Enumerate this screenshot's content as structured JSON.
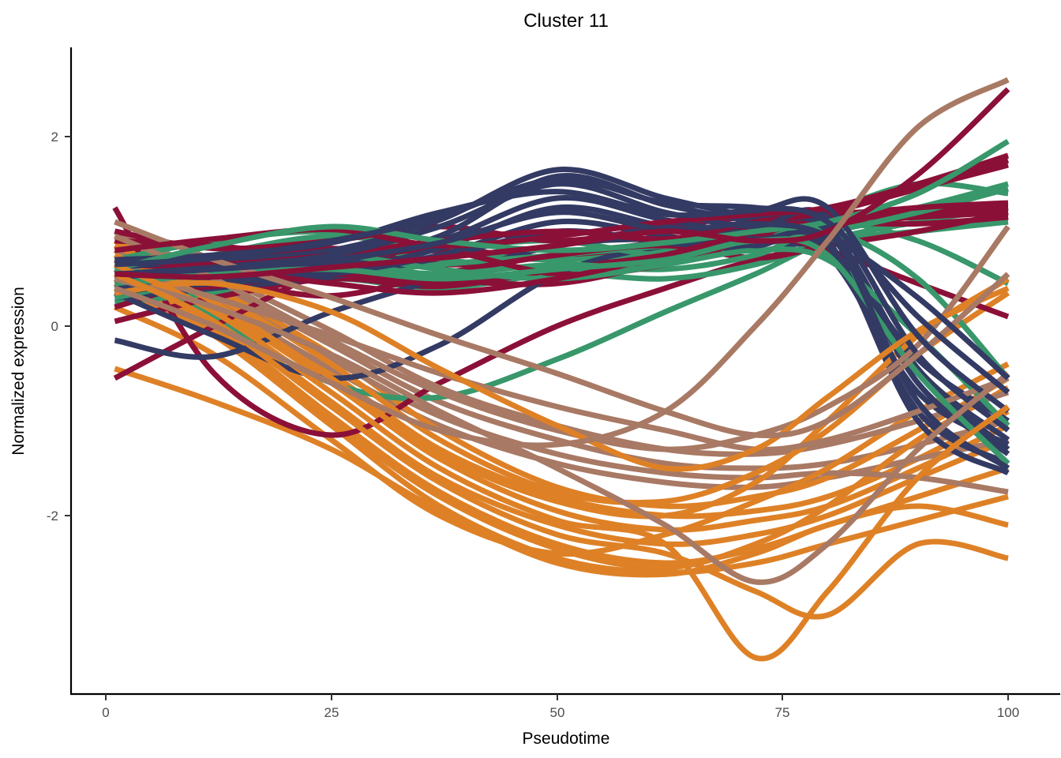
{
  "title": "Cluster 11",
  "chart_data": {
    "type": "line",
    "title": "Cluster 11",
    "xlabel": "Pseudotime",
    "ylabel": "Normalized expression",
    "x_ticks": [
      0,
      25,
      50,
      75,
      100
    ],
    "y_ticks": [
      -2,
      0,
      2
    ],
    "xlim": [
      0,
      100
    ],
    "ylim": [
      -3.8,
      2.9
    ],
    "grid": "off",
    "legend": "none",
    "description": "Smoothed normalized gene expression trajectories over pseudotime for genes in cluster 11, colored by lineage group",
    "palette": {
      "navy": "#333A63",
      "maroon": "#8B1038",
      "green": "#38976B",
      "orange": "#DE8126",
      "tan": "#A87964"
    },
    "t_grid": [
      1,
      12,
      25,
      37,
      50,
      62,
      72,
      80,
      90,
      100
    ],
    "series": [
      {
        "color": "orange",
        "values": [
          0.8,
          0.3,
          -0.5,
          -1.3,
          -1.8,
          -2.0,
          -1.95,
          -1.8,
          -1.4,
          -0.9
        ]
      },
      {
        "color": "orange",
        "values": [
          0.7,
          0.2,
          -0.6,
          -1.4,
          -1.95,
          -2.15,
          -2.05,
          -1.9,
          -1.5,
          -1.05
        ]
      },
      {
        "color": "orange",
        "values": [
          0.6,
          0.1,
          -0.8,
          -1.6,
          -2.1,
          -2.3,
          -2.2,
          -2.0,
          -1.6,
          -1.2
        ]
      },
      {
        "color": "orange",
        "values": [
          0.5,
          0.0,
          -0.95,
          -1.75,
          -2.3,
          -2.5,
          -2.35,
          -2.1,
          -1.8,
          -1.5
        ]
      },
      {
        "color": "orange",
        "values": [
          0.4,
          -0.1,
          -1.05,
          -1.9,
          -2.45,
          -2.6,
          -2.5,
          -2.3,
          -2.05,
          -1.8
        ]
      },
      {
        "color": "tan",
        "values": [
          0.9,
          0.45,
          -0.2,
          -0.8,
          -1.2,
          -1.45,
          -1.5,
          -1.45,
          -1.25,
          -1.0
        ]
      },
      {
        "color": "tan",
        "values": [
          0.7,
          0.25,
          -0.45,
          -1.05,
          -1.45,
          -1.65,
          -1.7,
          -1.6,
          -1.4,
          -1.2
        ]
      },
      {
        "color": "orange",
        "values": [
          0.9,
          0.4,
          -0.3,
          -1.1,
          -1.7,
          -1.9,
          -1.8,
          -1.6,
          -1.1,
          -0.55
        ]
      },
      {
        "color": "orange",
        "values": [
          0.45,
          -0.05,
          -1.0,
          -1.8,
          -2.35,
          -2.55,
          -2.3,
          -1.9,
          -1.2,
          -0.65
        ]
      },
      {
        "color": "orange",
        "values": [
          -0.45,
          -0.8,
          -1.3,
          -1.95,
          -2.5,
          -2.62,
          -2.4,
          -2.1,
          -1.9,
          -2.1
        ]
      },
      {
        "color": "tan",
        "values": [
          0.8,
          0.35,
          -0.35,
          -0.95,
          -1.35,
          -1.55,
          -1.6,
          -1.55,
          -1.6,
          -1.75
        ]
      },
      {
        "color": "orange",
        "values": [
          0.2,
          -0.3,
          -1.2,
          -2.0,
          -2.4,
          -2.2,
          -1.85,
          -1.5,
          -0.9,
          -0.4
        ]
      },
      {
        "color": "green",
        "values": [
          0.6,
          0.1,
          -0.6,
          -0.75,
          -0.35,
          0.15,
          0.55,
          0.9,
          1.1,
          1.25
        ]
      },
      {
        "color": "maroon",
        "values": [
          1.25,
          -0.5,
          -1.15,
          -0.6,
          0.0,
          0.4,
          0.7,
          0.85,
          1.0,
          1.15
        ]
      },
      {
        "color": "tan",
        "values": [
          1.0,
          0.55,
          -0.05,
          -0.65,
          -1.05,
          -1.3,
          -1.35,
          -1.25,
          -1.0,
          -0.7
        ]
      },
      {
        "color": "orange",
        "values": [
          0.85,
          0.35,
          -0.4,
          -1.2,
          -1.75,
          -1.85,
          -1.55,
          -1.1,
          -0.3,
          0.35
        ]
      },
      {
        "color": "maroon",
        "values": [
          -0.55,
          0.0,
          0.6,
          0.8,
          0.72,
          0.85,
          1.05,
          1.15,
          1.2,
          1.25
        ]
      },
      {
        "color": "green",
        "values": [
          0.25,
          0.35,
          0.5,
          0.4,
          0.55,
          0.5,
          0.65,
          0.9,
          1.0,
          1.1
        ]
      },
      {
        "color": "green",
        "values": [
          0.4,
          0.6,
          0.8,
          0.7,
          0.6,
          0.7,
          0.85,
          1.1,
          0.9,
          0.45
        ]
      },
      {
        "color": "maroon",
        "values": [
          0.05,
          0.3,
          0.5,
          0.42,
          0.6,
          0.8,
          1.0,
          1.08,
          1.15,
          1.2
        ]
      },
      {
        "color": "green",
        "values": [
          0.5,
          0.75,
          0.95,
          0.8,
          0.7,
          0.8,
          0.95,
          1.05,
          1.25,
          1.5
        ]
      },
      {
        "color": "maroon",
        "values": [
          0.2,
          0.5,
          0.65,
          0.5,
          0.45,
          0.7,
          1.05,
          1.12,
          1.18,
          1.25
        ]
      },
      {
        "color": "navy",
        "values": [
          0.35,
          -0.1,
          -0.55,
          -0.2,
          0.55,
          0.85,
          0.9,
          0.85,
          -0.35,
          -1.0
        ]
      },
      {
        "color": "green",
        "values": [
          0.7,
          0.9,
          1.0,
          0.85,
          0.9,
          0.75,
          0.9,
          1.2,
          1.5,
          1.4
        ]
      },
      {
        "color": "maroon",
        "values": [
          0.45,
          0.7,
          0.82,
          0.65,
          0.75,
          0.9,
          1.1,
          1.18,
          1.22,
          1.18
        ]
      },
      {
        "color": "navy",
        "values": [
          -0.15,
          -0.32,
          0.15,
          0.5,
          0.85,
          0.92,
          0.88,
          0.8,
          -0.5,
          -1.3
        ]
      },
      {
        "color": "maroon",
        "values": [
          1.0,
          0.82,
          0.9,
          1.05,
          0.9,
          1.05,
          1.15,
          1.1,
          1.08,
          1.15
        ]
      },
      {
        "color": "green",
        "values": [
          0.35,
          0.45,
          0.55,
          0.65,
          0.75,
          0.85,
          0.95,
          1.0,
          1.2,
          1.45
        ]
      },
      {
        "color": "maroon",
        "values": [
          0.3,
          0.45,
          0.32,
          0.55,
          0.75,
          0.85,
          0.72,
          0.85,
          1.0,
          1.2
        ]
      },
      {
        "color": "navy",
        "values": [
          0.3,
          0.4,
          0.52,
          0.72,
          1.0,
          0.88,
          0.8,
          0.75,
          -0.7,
          -1.25
        ]
      },
      {
        "color": "maroon",
        "values": [
          0.35,
          0.42,
          0.55,
          0.45,
          0.6,
          0.75,
          0.95,
          0.8,
          0.45,
          0.1
        ]
      },
      {
        "color": "green",
        "values": [
          0.3,
          0.5,
          0.65,
          0.55,
          0.65,
          0.6,
          0.75,
          1.0,
          0.5,
          -0.55
        ]
      },
      {
        "color": "navy",
        "values": [
          0.5,
          0.55,
          0.65,
          0.9,
          1.35,
          1.12,
          0.98,
          1.05,
          -0.45,
          -1.2
        ]
      },
      {
        "color": "maroon",
        "values": [
          0.9,
          0.85,
          0.72,
          0.8,
          0.55,
          0.65,
          0.95,
          1.15,
          1.25,
          1.3
        ]
      },
      {
        "color": "navy",
        "values": [
          0.35,
          0.48,
          0.58,
          0.82,
          1.25,
          1.05,
          0.92,
          0.85,
          -0.9,
          -1.45
        ]
      },
      {
        "color": "green",
        "values": [
          0.55,
          0.65,
          0.75,
          0.6,
          0.5,
          0.65,
          0.8,
          0.7,
          -0.1,
          -1.05
        ]
      },
      {
        "color": "navy",
        "values": [
          0.4,
          0.45,
          0.55,
          0.75,
          1.1,
          0.95,
          0.85,
          0.9,
          -1.0,
          -1.55
        ]
      },
      {
        "color": "orange",
        "values": [
          0.75,
          0.25,
          -0.55,
          -1.35,
          -1.85,
          -2.0,
          -1.65,
          -1.0,
          -0.1,
          0.5
        ]
      },
      {
        "color": "tan",
        "values": [
          0.6,
          0.3,
          -0.1,
          -0.5,
          -0.85,
          -1.1,
          -1.3,
          -1.2,
          -0.9,
          -0.55
        ]
      },
      {
        "color": "maroon",
        "values": [
          0.65,
          0.6,
          0.45,
          0.35,
          0.5,
          0.75,
          1.0,
          1.2,
          1.45,
          1.75
        ]
      },
      {
        "color": "navy",
        "values": [
          0.45,
          0.58,
          0.68,
          0.95,
          1.58,
          1.28,
          1.1,
          1.0,
          -0.6,
          -1.35
        ]
      },
      {
        "color": "green",
        "values": [
          0.45,
          0.55,
          0.6,
          0.5,
          0.6,
          0.7,
          0.9,
          0.75,
          -0.5,
          -1.45
        ]
      },
      {
        "color": "navy",
        "values": [
          0.62,
          0.7,
          0.8,
          1.12,
          1.65,
          1.35,
          1.15,
          1.05,
          -0.8,
          -1.5
        ]
      },
      {
        "color": "tan",
        "values": [
          0.95,
          0.5,
          -0.15,
          -0.7,
          -1.1,
          -1.3,
          -1.15,
          -0.85,
          -0.2,
          1.05
        ]
      },
      {
        "color": "maroon",
        "values": [
          0.7,
          0.65,
          0.75,
          0.9,
          1.0,
          0.92,
          1.1,
          1.2,
          1.45,
          1.7
        ]
      },
      {
        "color": "navy",
        "values": [
          0.55,
          0.62,
          0.75,
          1.05,
          1.5,
          1.2,
          1.05,
          1.15,
          -0.3,
          -1.1
        ]
      },
      {
        "color": "orange",
        "values": [
          0.35,
          0.45,
          0.15,
          -0.45,
          -1.05,
          -1.5,
          -1.3,
          -0.75,
          -0.05,
          0.4
        ]
      },
      {
        "color": "tan",
        "values": [
          1.1,
          0.7,
          0.3,
          -0.1,
          -0.5,
          -0.9,
          -1.15,
          -1.0,
          -0.3,
          0.55
        ]
      },
      {
        "color": "maroon",
        "values": [
          0.8,
          0.92,
          1.02,
          0.85,
          0.95,
          1.1,
          1.18,
          1.25,
          1.5,
          1.8
        ]
      },
      {
        "color": "navy",
        "values": [
          0.7,
          0.75,
          0.88,
          1.2,
          1.42,
          1.18,
          1.22,
          1.25,
          -0.1,
          -0.9
        ]
      },
      {
        "color": "green",
        "values": [
          0.6,
          0.85,
          1.05,
          0.9,
          0.8,
          0.88,
          1.0,
          1.1,
          1.4,
          1.95
        ]
      },
      {
        "color": "orange",
        "values": [
          0.65,
          0.15,
          -0.7,
          -1.5,
          -2.05,
          -2.3,
          -3.5,
          -2.8,
          -1.6,
          -0.85
        ]
      },
      {
        "color": "tan",
        "values": [
          0.5,
          0.2,
          -0.3,
          -0.9,
          -1.5,
          -2.1,
          -2.7,
          -2.3,
          -1.3,
          -0.5
        ]
      },
      {
        "color": "orange",
        "values": [
          0.55,
          0.05,
          -0.85,
          -1.65,
          -2.2,
          -2.4,
          -2.8,
          -3.05,
          -2.3,
          -2.45
        ]
      },
      {
        "color": "navy",
        "values": [
          0.65,
          0.72,
          0.9,
          1.15,
          1.55,
          1.3,
          1.25,
          1.1,
          0.1,
          -0.7
        ]
      },
      {
        "color": "navy",
        "values": [
          0.55,
          0.6,
          0.7,
          0.88,
          1.2,
          1.02,
          1.08,
          0.95,
          0.3,
          -0.55
        ]
      },
      {
        "color": "maroon",
        "values": [
          0.55,
          0.52,
          0.62,
          0.72,
          0.85,
          1.0,
          0.9,
          1.0,
          1.6,
          2.5
        ]
      },
      {
        "color": "tan",
        "values": [
          0.4,
          0.0,
          -0.6,
          -1.1,
          -1.25,
          -0.9,
          0.0,
          0.9,
          2.1,
          2.6
        ]
      }
    ]
  }
}
